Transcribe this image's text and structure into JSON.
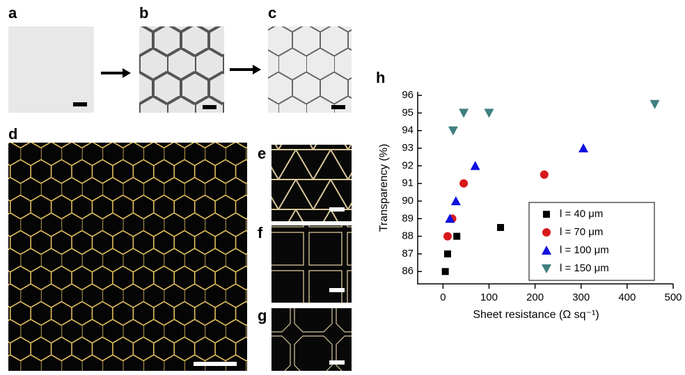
{
  "panel_labels": [
    "a",
    "b",
    "c",
    "d",
    "e",
    "f",
    "g",
    "h"
  ],
  "chart_data": {
    "type": "scatter",
    "xlabel": "Sheet resistance (Ω sq⁻¹)",
    "ylabel": "Transparency (%)",
    "xlim": [
      -55,
      500
    ],
    "ylim": [
      85.3,
      96.2
    ],
    "xticks": [
      0,
      100,
      200,
      300,
      400,
      500
    ],
    "yticks": [
      86,
      87,
      88,
      89,
      90,
      91,
      92,
      93,
      94,
      95,
      96
    ],
    "legend": "lower right",
    "series": [
      {
        "name": "l = 40 μm",
        "color": "#000000",
        "marker": "square",
        "x": [
          5,
          10,
          30,
          125
        ],
        "values": [
          86,
          87,
          88,
          88.5
        ]
      },
      {
        "name": "l = 70 μm",
        "color": "#d7191c",
        "marker": "circle",
        "x": [
          10,
          20,
          45,
          220
        ],
        "values": [
          88,
          89,
          91,
          91.5
        ]
      },
      {
        "name": "l = 100 μm",
        "color": "#1010e0",
        "marker": "triangle-up",
        "x": [
          15,
          28,
          70,
          305
        ],
        "values": [
          89,
          90,
          92,
          93
        ]
      },
      {
        "name": "l = 150 μm",
        "color": "#3f7f7f",
        "marker": "triangle-down",
        "x": [
          22,
          45,
          100,
          460
        ],
        "values": [
          94,
          95,
          95,
          95.5
        ]
      }
    ]
  }
}
